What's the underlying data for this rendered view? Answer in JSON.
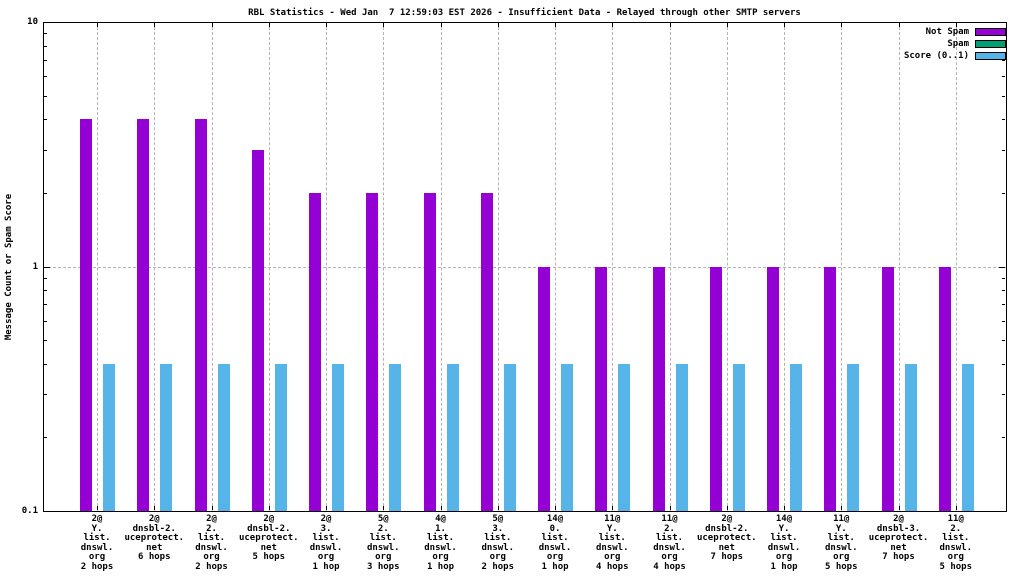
{
  "chart_data": {
    "type": "bar",
    "title": "RBL Statistics - Wed Jan  7 12:59:03 EST 2026 - Insufficient Data - Relayed through other SMTP servers",
    "ylabel": "Message Count or Spam Score",
    "xlabel": "",
    "y_scale": "log",
    "ylim": [
      0.1,
      10
    ],
    "yticks": [
      {
        "value": 10,
        "label": "10"
      },
      {
        "value": 1,
        "label": "1"
      },
      {
        "value": 0.1,
        "label": "0.1"
      }
    ],
    "grid": true,
    "legend_position": "top-right-inside",
    "colors": {
      "background": "#ffffff",
      "axis": "#000000",
      "gridline": "#b3b3b3",
      "not_spam": "#9400d3",
      "spam": "#009e73",
      "score": "#56b4e9"
    },
    "categories": [
      "2@\nY.\nlist.\ndnswl.\norg\n2 hops",
      "2@\ndnsbl-2.\nuceprotect.\nnet\n6 hops",
      "2@\n2.\nlist.\ndnswl.\norg\n2 hops",
      "2@\ndnsbl-2.\nuceprotect.\nnet\n5 hops",
      "2@\n3.\nlist.\ndnswl.\norg\n1 hop",
      "5@\n2.\nlist.\ndnswl.\norg\n3 hops",
      "4@\n1.\nlist.\ndnswl.\norg\n1 hop",
      "5@\n3.\nlist.\ndnswl.\norg\n2 hops",
      "14@\n0.\nlist.\ndnswl.\norg\n1 hop",
      "11@\nY.\nlist.\ndnswl.\norg\n4 hops",
      "11@\n2.\nlist.\ndnswl.\norg\n4 hops",
      "2@\ndnsbl-2.\nuceprotect.\nnet\n7 hops",
      "14@\nY.\nlist.\ndnswl.\norg\n1 hop",
      "11@\nY.\nlist.\ndnswl.\norg\n5 hops",
      "2@\ndnsbl-3.\nuceprotect.\nnet\n7 hops",
      "11@\n2.\nlist.\ndnswl.\norg\n5 hops"
    ],
    "series": [
      {
        "name": "Not Spam",
        "color": "#9400d3",
        "values": [
          4,
          4,
          4,
          3,
          2,
          2,
          2,
          2,
          1,
          1,
          1,
          1,
          1,
          1,
          1,
          1
        ]
      },
      {
        "name": "Spam",
        "color": "#009e73",
        "values": [
          0,
          0,
          0,
          0,
          0,
          0,
          0,
          0,
          0,
          0,
          0,
          0,
          0,
          0,
          0,
          0
        ]
      },
      {
        "name": "Score (0..1)",
        "color": "#56b4e9",
        "values": [
          0.4,
          0.4,
          0.4,
          0.4,
          0.4,
          0.4,
          0.4,
          0.4,
          0.4,
          0.4,
          0.4,
          0.4,
          0.4,
          0.4,
          0.4,
          0.4
        ]
      }
    ]
  }
}
